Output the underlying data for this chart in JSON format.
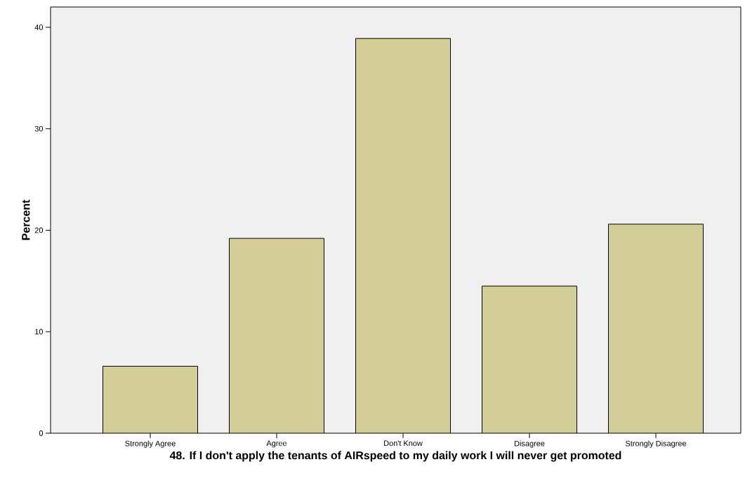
{
  "chart_data": {
    "type": "bar",
    "xlabel": "48.  If I don't apply the tenants of AIRspeed to my daily work I will never get promoted",
    "ylabel": "Percent",
    "categories": [
      "Strongly Agree",
      "Agree",
      "Don't Know",
      "Disagree",
      "Strongly Disagree"
    ],
    "values": [
      6.6,
      19.2,
      38.9,
      14.5,
      20.6
    ],
    "color": "#d3ce97",
    "ylim": [
      0,
      42
    ],
    "yticks": [
      0,
      10,
      20,
      30,
      40
    ],
    "grid": false
  }
}
